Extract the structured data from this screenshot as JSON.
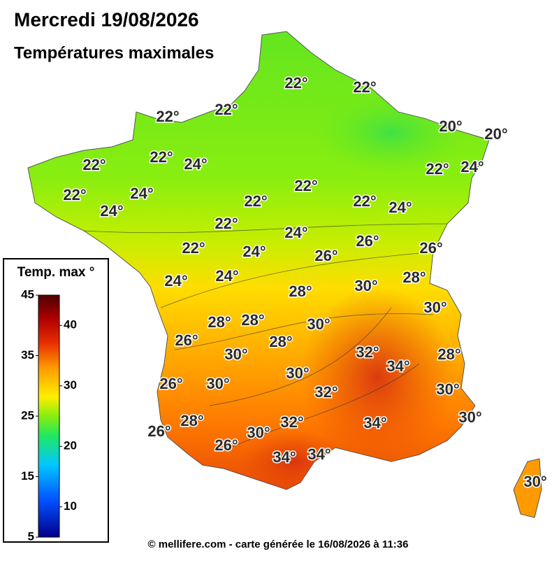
{
  "header": {
    "title": "Mercredi 19/08/2026",
    "subtitle": "Températures maximales"
  },
  "map": {
    "labels": [
      "22°",
      "22°",
      "22°",
      "22°",
      "20°",
      "20°",
      "22°",
      "22°",
      "24°",
      "22°",
      "24°",
      "22°",
      "24°",
      "24°",
      "22°",
      "22°",
      "22°",
      "24°",
      "22°",
      "24°",
      "26°",
      "26°",
      "22°",
      "24°",
      "26°",
      "24°",
      "24°",
      "28°",
      "28°",
      "30°",
      "30°",
      "28°",
      "28°",
      "30°",
      "28°",
      "26°",
      "30°",
      "32°",
      "34°",
      "28°",
      "30°",
      "26°",
      "30°",
      "32°",
      "30°",
      "30°",
      "26°",
      "28°",
      "30°",
      "32°",
      "34°",
      "26°",
      "34°",
      "34°",
      "30°"
    ]
  },
  "legend": {
    "title": "Temp. max °",
    "min": 5,
    "max": 45,
    "ticks_left": [
      5,
      15,
      25,
      35,
      45
    ],
    "ticks_right": [
      10,
      20,
      30,
      40
    ]
  },
  "footer": "© mellifere.com - carte générée le 16/08/2026 à 11:36"
}
